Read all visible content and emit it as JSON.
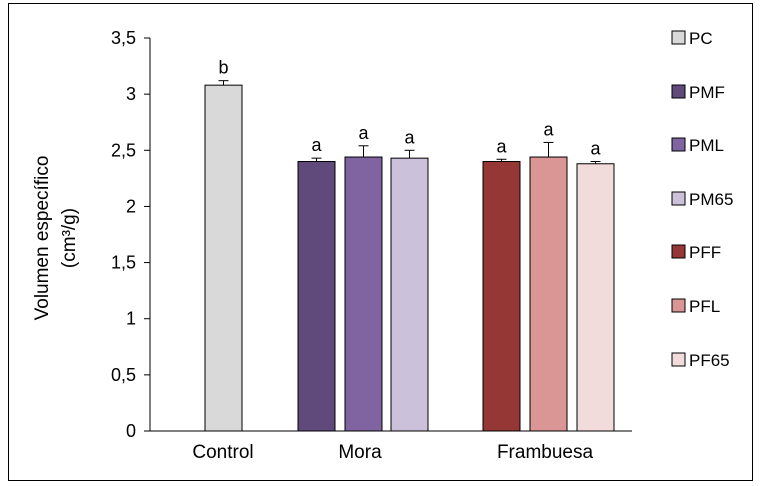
{
  "chart_data": {
    "type": "bar",
    "ylabel_line1": "Volumen específico",
    "ylabel_line2": "(cm³/g)",
    "ylim": [
      0,
      3.5
    ],
    "yticks": [
      0,
      0.5,
      1,
      1.5,
      2,
      2.5,
      3,
      3.5
    ],
    "ytick_labels": [
      "0",
      "0,5",
      "1",
      "1,5",
      "2",
      "2,5",
      "3",
      "3,5"
    ],
    "groups": [
      "Control",
      "Mora",
      "Frambuesa"
    ],
    "grid": false,
    "legend_position": "right",
    "series": [
      {
        "name": "PC",
        "group": "Control",
        "value": 3.08,
        "error": 0.04,
        "letter": "b",
        "color": "#d9d9d9"
      },
      {
        "name": "PMF",
        "group": "Mora",
        "value": 2.4,
        "error": 0.03,
        "letter": "a",
        "color": "#604a7b"
      },
      {
        "name": "PML",
        "group": "Mora",
        "value": 2.44,
        "error": 0.1,
        "letter": "a",
        "color": "#8064a2"
      },
      {
        "name": "PM65",
        "group": "Mora",
        "value": 2.43,
        "error": 0.07,
        "letter": "a",
        "color": "#ccc1da"
      },
      {
        "name": "PFF",
        "group": "Frambuesa",
        "value": 2.4,
        "error": 0.02,
        "letter": "a",
        "color": "#953735"
      },
      {
        "name": "PFL",
        "group": "Frambuesa",
        "value": 2.44,
        "error": 0.13,
        "letter": "a",
        "color": "#d99694"
      },
      {
        "name": "PF65",
        "group": "Frambuesa",
        "value": 2.38,
        "error": 0.02,
        "letter": "a",
        "color": "#f2dcdb"
      }
    ]
  }
}
